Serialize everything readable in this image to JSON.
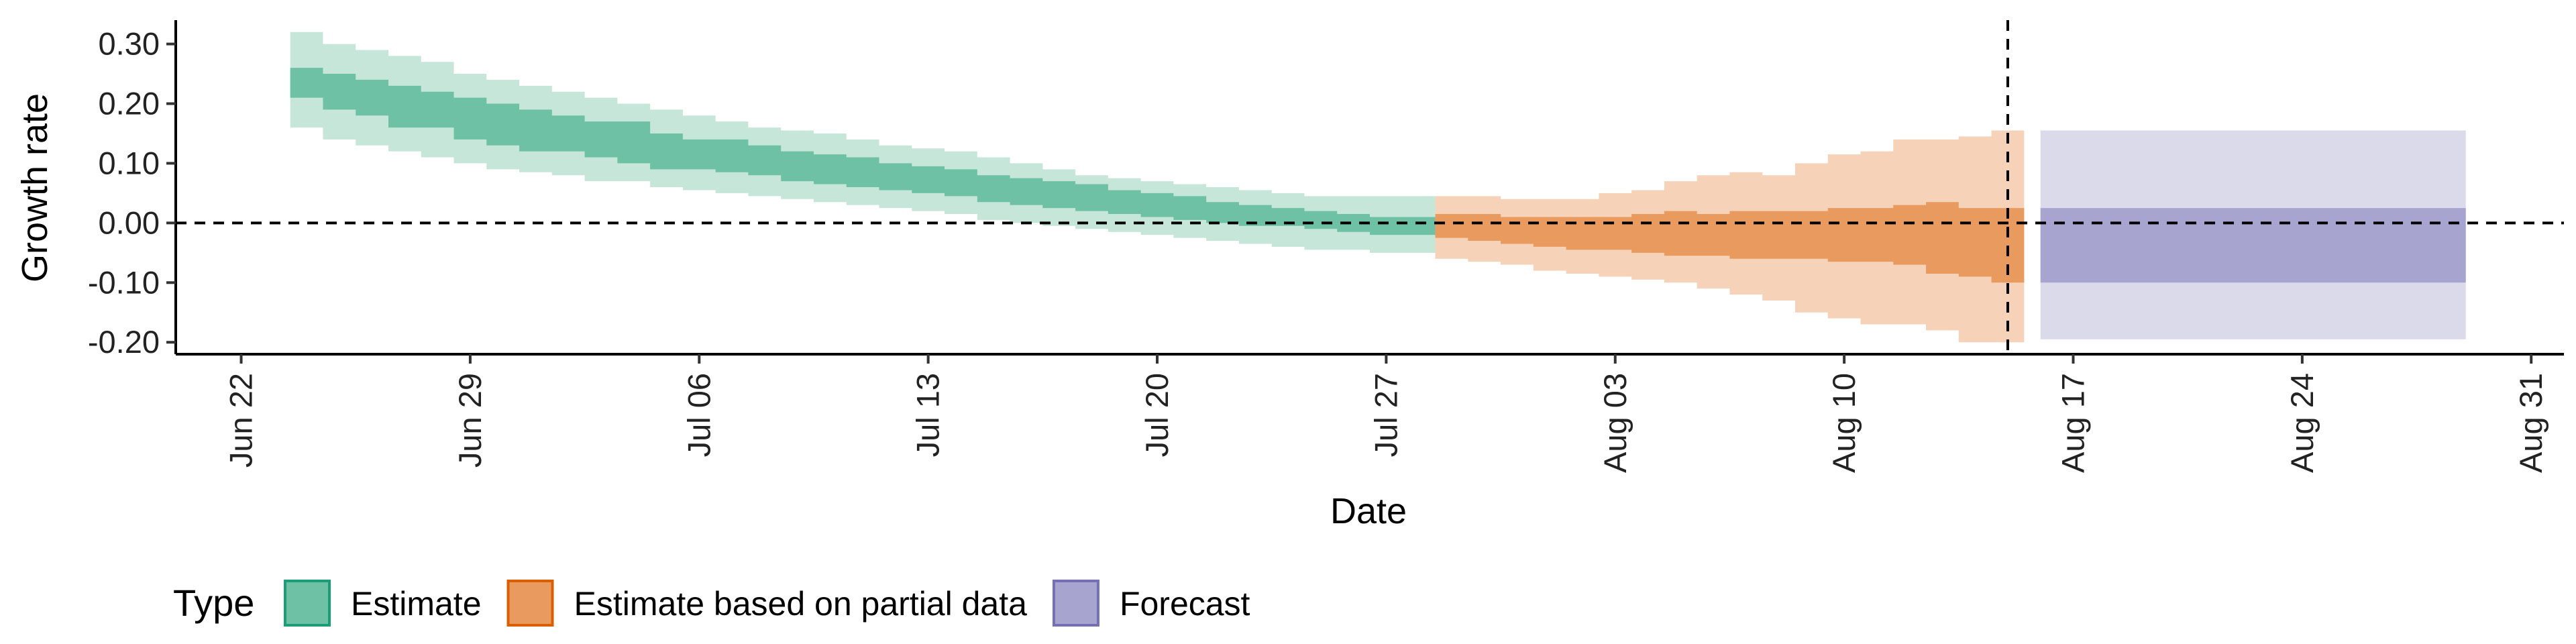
{
  "chart_data": {
    "type": "area",
    "title": "",
    "xlabel": "Date",
    "ylabel": "Growth rate",
    "x_range": [
      "2020-06-20",
      "2020-09-01"
    ],
    "ylim": [
      -0.22,
      0.34
    ],
    "x_ticks": [
      {
        "date": "2020-06-22",
        "label": "Jun 22"
      },
      {
        "date": "2020-06-29",
        "label": "Jun 29"
      },
      {
        "date": "2020-07-06",
        "label": "Jul 06"
      },
      {
        "date": "2020-07-13",
        "label": "Jul 13"
      },
      {
        "date": "2020-07-20",
        "label": "Jul 20"
      },
      {
        "date": "2020-07-27",
        "label": "Jul 27"
      },
      {
        "date": "2020-08-03",
        "label": "Aug 03"
      },
      {
        "date": "2020-08-10",
        "label": "Aug 10"
      },
      {
        "date": "2020-08-17",
        "label": "Aug 17"
      },
      {
        "date": "2020-08-24",
        "label": "Aug 24"
      },
      {
        "date": "2020-08-31",
        "label": "Aug 31"
      }
    ],
    "y_ticks": [
      {
        "value": 0.3,
        "label": "0.30"
      },
      {
        "value": 0.2,
        "label": "0.20"
      },
      {
        "value": 0.1,
        "label": "0.10"
      },
      {
        "value": 0.0,
        "label": "0.00"
      },
      {
        "value": -0.1,
        "label": "-0.10"
      },
      {
        "value": -0.2,
        "label": "-0.20"
      }
    ],
    "reference_lines": {
      "horizontal_y": 0.0,
      "vertical_date": "2020-08-15"
    },
    "grid": false,
    "legend": {
      "title": "Type",
      "placement": "bottom-left",
      "entries": [
        "Estimate",
        "Estimate based on partial data",
        "Forecast"
      ]
    },
    "colors": {
      "estimate_outer": "#c6e6da",
      "estimate_inner": "#6ec1a4",
      "partial_outer": "#f6d3b8",
      "partial_inner": "#e99a5f",
      "forecast_outer": "#dadaeb",
      "forecast_inner": "#a7a4d0",
      "legend_estimate_fill": "#6ec1a4",
      "legend_estimate_border": "#1b9e77",
      "legend_partial_fill": "#e99a5f",
      "legend_partial_border": "#d95f02",
      "legend_forecast_fill": "#a7a4d0",
      "legend_forecast_border": "#7570b3"
    },
    "series": [
      {
        "name": "Estimate",
        "dates": [
          "2020-06-24",
          "2020-06-25",
          "2020-06-26",
          "2020-06-27",
          "2020-06-28",
          "2020-06-29",
          "2020-06-30",
          "2020-07-01",
          "2020-07-02",
          "2020-07-03",
          "2020-07-04",
          "2020-07-05",
          "2020-07-06",
          "2020-07-07",
          "2020-07-08",
          "2020-07-09",
          "2020-07-10",
          "2020-07-11",
          "2020-07-12",
          "2020-07-13",
          "2020-07-14",
          "2020-07-15",
          "2020-07-16",
          "2020-07-17",
          "2020-07-18",
          "2020-07-19",
          "2020-07-20",
          "2020-07-21",
          "2020-07-22",
          "2020-07-23",
          "2020-07-24",
          "2020-07-25",
          "2020-07-26",
          "2020-07-27",
          "2020-07-28"
        ],
        "lower90": [
          0.16,
          0.14,
          0.13,
          0.12,
          0.11,
          0.1,
          0.09,
          0.085,
          0.08,
          0.07,
          0.07,
          0.06,
          0.055,
          0.05,
          0.045,
          0.04,
          0.035,
          0.03,
          0.025,
          0.02,
          0.015,
          0.005,
          0.0,
          -0.005,
          -0.01,
          -0.015,
          -0.02,
          -0.025,
          -0.03,
          -0.035,
          -0.04,
          -0.045,
          -0.045,
          -0.05,
          -0.05
        ],
        "lower50": [
          0.21,
          0.19,
          0.18,
          0.16,
          0.16,
          0.14,
          0.13,
          0.12,
          0.12,
          0.11,
          0.1,
          0.09,
          0.09,
          0.085,
          0.08,
          0.07,
          0.065,
          0.06,
          0.055,
          0.05,
          0.045,
          0.035,
          0.03,
          0.025,
          0.02,
          0.015,
          0.01,
          0.005,
          0.0,
          -0.005,
          -0.005,
          -0.01,
          -0.015,
          -0.02,
          -0.02
        ],
        "upper50": [
          0.26,
          0.25,
          0.24,
          0.23,
          0.22,
          0.21,
          0.2,
          0.19,
          0.18,
          0.17,
          0.17,
          0.15,
          0.14,
          0.14,
          0.13,
          0.12,
          0.115,
          0.11,
          0.1,
          0.095,
          0.09,
          0.08,
          0.075,
          0.07,
          0.065,
          0.055,
          0.05,
          0.045,
          0.035,
          0.03,
          0.025,
          0.02,
          0.015,
          0.01,
          0.01
        ],
        "upper90": [
          0.32,
          0.3,
          0.29,
          0.28,
          0.27,
          0.25,
          0.24,
          0.23,
          0.22,
          0.21,
          0.2,
          0.19,
          0.18,
          0.17,
          0.16,
          0.155,
          0.15,
          0.14,
          0.13,
          0.125,
          0.12,
          0.11,
          0.1,
          0.09,
          0.08,
          0.075,
          0.07,
          0.065,
          0.06,
          0.055,
          0.05,
          0.045,
          0.045,
          0.045,
          0.045
        ]
      },
      {
        "name": "Estimate based on partial data",
        "dates": [
          "2020-07-29",
          "2020-07-30",
          "2020-07-31",
          "2020-08-01",
          "2020-08-02",
          "2020-08-03",
          "2020-08-04",
          "2020-08-05",
          "2020-08-06",
          "2020-08-07",
          "2020-08-08",
          "2020-08-09",
          "2020-08-10",
          "2020-08-11",
          "2020-08-12",
          "2020-08-13",
          "2020-08-14",
          "2020-08-15"
        ],
        "lower90": [
          -0.06,
          -0.065,
          -0.07,
          -0.08,
          -0.085,
          -0.09,
          -0.095,
          -0.1,
          -0.11,
          -0.12,
          -0.13,
          -0.15,
          -0.16,
          -0.17,
          -0.17,
          -0.18,
          -0.2,
          -0.2
        ],
        "lower50": [
          -0.025,
          -0.03,
          -0.035,
          -0.04,
          -0.045,
          -0.045,
          -0.05,
          -0.055,
          -0.055,
          -0.06,
          -0.06,
          -0.06,
          -0.065,
          -0.065,
          -0.07,
          -0.085,
          -0.09,
          -0.1
        ],
        "upper50": [
          0.015,
          0.015,
          0.01,
          0.01,
          0.01,
          0.01,
          0.015,
          0.02,
          0.015,
          0.02,
          0.02,
          0.02,
          0.025,
          0.025,
          0.03,
          0.035,
          0.025,
          0.025
        ],
        "upper90": [
          0.045,
          0.045,
          0.04,
          0.04,
          0.04,
          0.05,
          0.055,
          0.07,
          0.08,
          0.085,
          0.08,
          0.1,
          0.115,
          0.12,
          0.14,
          0.14,
          0.145,
          0.155
        ]
      },
      {
        "name": "Forecast",
        "dates": [
          "2020-08-16",
          "2020-08-29"
        ],
        "lower90": [
          -0.195,
          -0.195
        ],
        "lower50": [
          -0.1,
          -0.1
        ],
        "upper50": [
          0.025,
          0.025
        ],
        "upper90": [
          0.155,
          0.155
        ]
      }
    ]
  }
}
